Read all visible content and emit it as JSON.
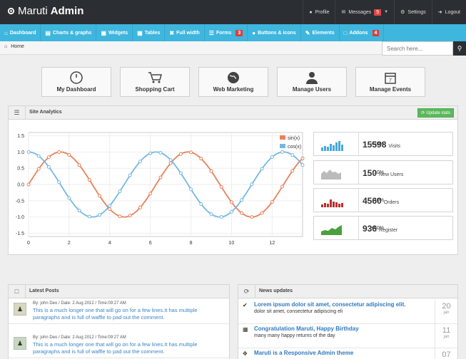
{
  "brand": {
    "light": "Maruti",
    "bold": "Admin"
  },
  "top_links": [
    {
      "label": "Profile",
      "icon": "user-icon"
    },
    {
      "label": "Messages",
      "badge": "5",
      "icon": "envelope-icon"
    },
    {
      "label": "Settings",
      "icon": "gear-icon"
    },
    {
      "label": "Logout",
      "icon": "logout-icon"
    }
  ],
  "nav": [
    {
      "label": "Dashboard",
      "icon": "home-icon"
    },
    {
      "label": "Charts & graphs",
      "icon": "bar-chart-icon"
    },
    {
      "label": "Widgets",
      "icon": "inbox-icon"
    },
    {
      "label": "Tables",
      "icon": "grid-icon"
    },
    {
      "label": "Full width",
      "icon": "fullscreen-icon"
    },
    {
      "label": "Forms",
      "badge": "3",
      "icon": "list-icon"
    },
    {
      "label": "Buttons & icons",
      "icon": "tint-icon"
    },
    {
      "label": "Elements",
      "icon": "pencil-icon"
    },
    {
      "label": "Addons",
      "badge": "4",
      "icon": "file-icon"
    }
  ],
  "breadcrumb": {
    "home": "Home"
  },
  "search": {
    "placeholder": "Search here..."
  },
  "tiles": [
    {
      "label": "My Dashboard",
      "icon": "dashboard-icon"
    },
    {
      "label": "Shopping Cart",
      "icon": "cart-icon"
    },
    {
      "label": "Web Marketing",
      "icon": "globe-icon"
    },
    {
      "label": "Manage Users",
      "icon": "user-icon"
    },
    {
      "label": "Manage Events",
      "icon": "calendar-icon"
    }
  ],
  "analytics": {
    "title": "Site Analytics",
    "update_label": "Update stats"
  },
  "chart_data": {
    "type": "line",
    "title": "",
    "xlabel": "",
    "ylabel": "",
    "xlim": [
      0,
      13.5
    ],
    "ylim": [
      -1.6,
      1.6
    ],
    "x_ticks": [
      "0",
      "2",
      "4",
      "6",
      "8",
      "10",
      "12"
    ],
    "y_ticks": [
      "1.5",
      "1.0",
      "0.5",
      "0.0",
      "-0.5",
      "-1.0",
      "-1.5"
    ],
    "grid": true,
    "legend": "top-right",
    "series": [
      {
        "name": "sin(x)",
        "color": "#e8805a",
        "function": "sin",
        "step": 0.5,
        "x_max": 13.5
      },
      {
        "name": "cos(x)",
        "color": "#74b8e0",
        "function": "cos",
        "step": 0.5,
        "x_max": 13.5
      }
    ]
  },
  "stats": [
    {
      "pct": "+10%",
      "value": "15598",
      "label": "Visits",
      "color": "#4aa8e0",
      "kind": "bar"
    },
    {
      "pct": "10%",
      "value": "150",
      "label": "New Users",
      "color": "#bbbbbb",
      "kind": "area"
    },
    {
      "pct": "-40%",
      "value": "4560",
      "label": "Orders",
      "color": "#b8302e",
      "kind": "bar"
    },
    {
      "pct": "+60%",
      "value": "936",
      "label": "Register",
      "color": "#4aa03c",
      "kind": "area"
    }
  ],
  "latest_posts": {
    "title": "Latest Posts",
    "items": [
      {
        "meta": "By: john Deo / Date: 2 Aug 2012 / Time:09:27 AM",
        "text": "This is a much longer one that will go on for a few lines.It has multiple paragraphs and is full of waffle to pad out the comment."
      },
      {
        "meta": "By: john Deo / Date: 2 Aug 2012 / Time:09:27 AM",
        "text": "This is a much longer one that will go on for a few lines.It has multiple paragraphs and is full of waffle to pad out the comment."
      }
    ]
  },
  "news": {
    "title": "News updates",
    "items": [
      {
        "headline": "Lorem ipsum dolor sit amet, consectetur adipiscing elit.",
        "sub": "dolor sit amet, consectetur adipiscing eli",
        "day": "20",
        "month": "jan",
        "icon": "check-circle-icon"
      },
      {
        "headline": "Congratulation Maruti, Happy Birthday",
        "sub": "many many happy returns of the day",
        "day": "11",
        "month": "jan",
        "icon": "grid-icon"
      },
      {
        "headline": "Maruti is a Responsive Admin theme",
        "sub": "",
        "day": "07",
        "month": "",
        "icon": "move-icon"
      }
    ]
  }
}
